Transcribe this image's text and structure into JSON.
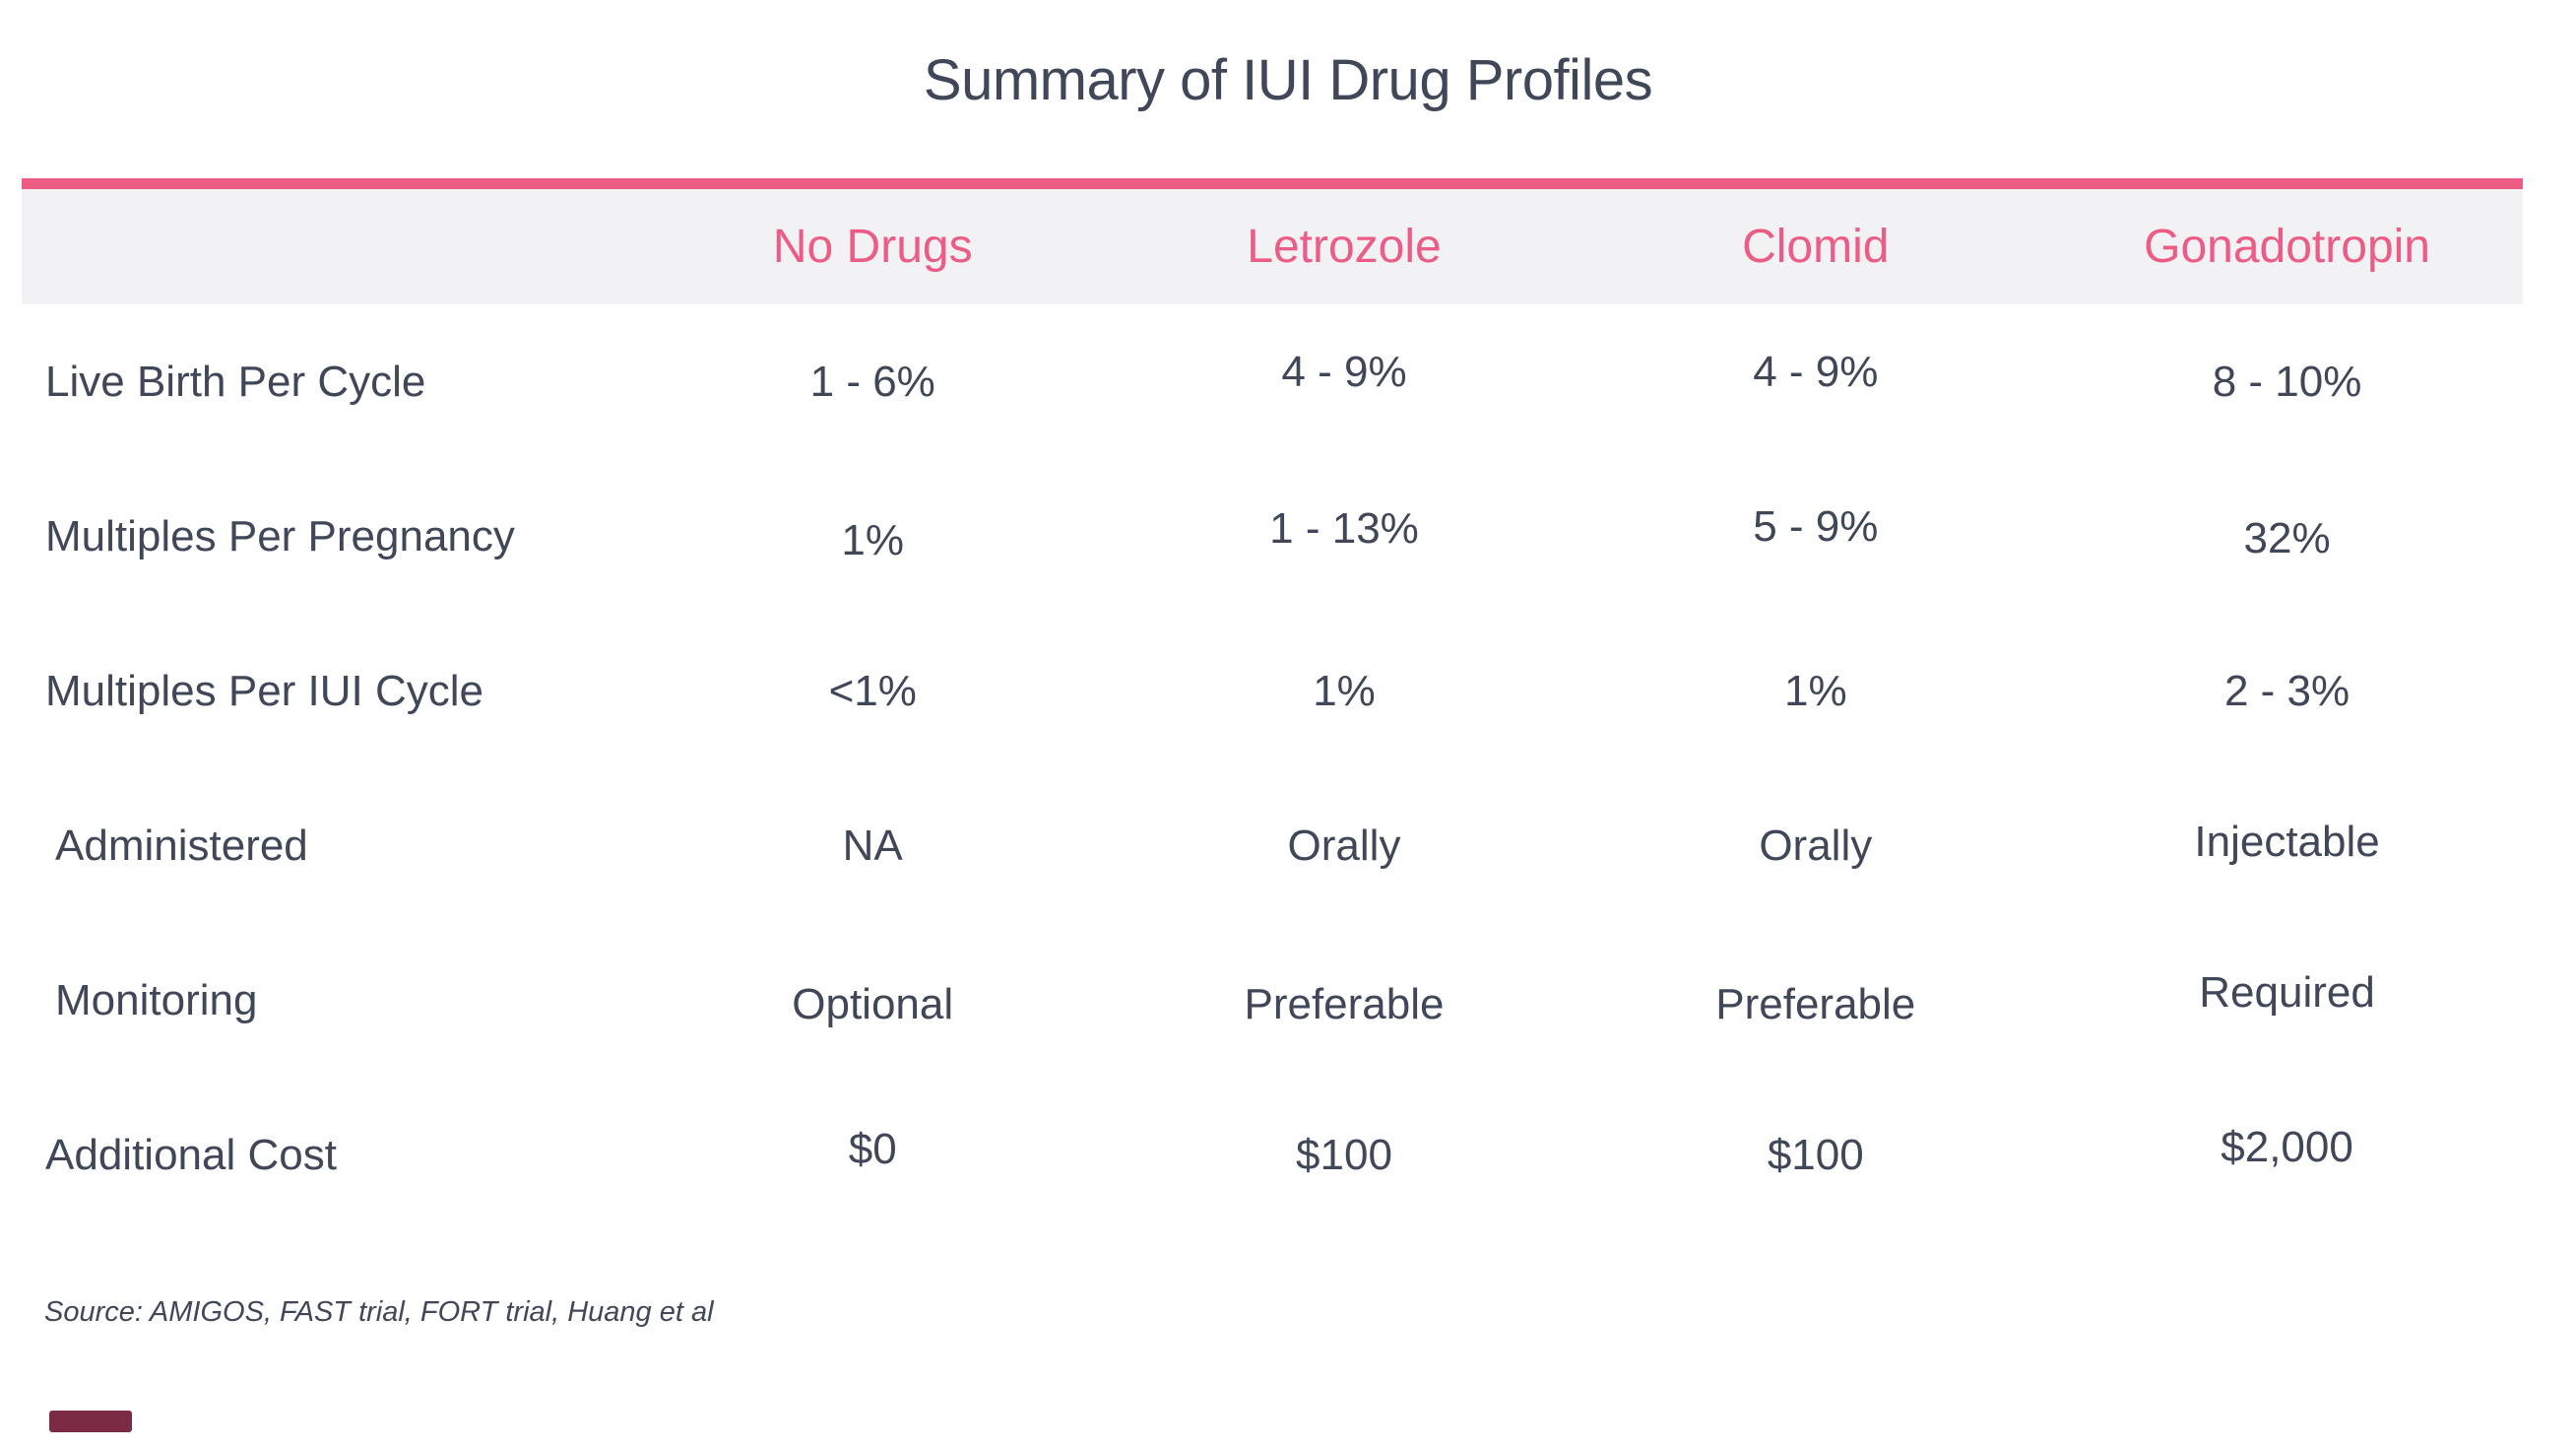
{
  "chart_data": {
    "type": "table",
    "title": "Summary of IUI Drug Profiles",
    "columns": [
      "No Drugs",
      "Letrozole",
      "Clomid",
      "Gonadotropin"
    ],
    "rows": [
      {
        "label": "Live Birth Per Cycle",
        "values": [
          "1 - 6%",
          "4 - 9%",
          "4 - 9%",
          "8 - 10%"
        ]
      },
      {
        "label": "Multiples Per Pregnancy",
        "values": [
          "1%",
          "1 - 13%",
          "5 - 9%",
          "32%"
        ]
      },
      {
        "label": "Multiples Per IUI Cycle",
        "values": [
          "<1%",
          "1%",
          "1%",
          "2 - 3%"
        ]
      },
      {
        "label": "Administered",
        "values": [
          "NA",
          "Orally",
          "Orally",
          "Injectable"
        ]
      },
      {
        "label": "Monitoring",
        "values": [
          "Optional",
          "Preferable",
          "Preferable",
          "Required"
        ]
      },
      {
        "label": "Additional Cost",
        "values": [
          "$0",
          "$100",
          "$100",
          "$2,000"
        ]
      }
    ],
    "source_note": "Source: AMIGOS, FAST trial, FORT trial, Huang et al",
    "legend": "none",
    "grid": "off"
  },
  "colors": {
    "accent": "#ec5c84",
    "text": "#3f4758",
    "header_background": "#f2f2f4",
    "logo_fragment": "#7b2c44"
  }
}
